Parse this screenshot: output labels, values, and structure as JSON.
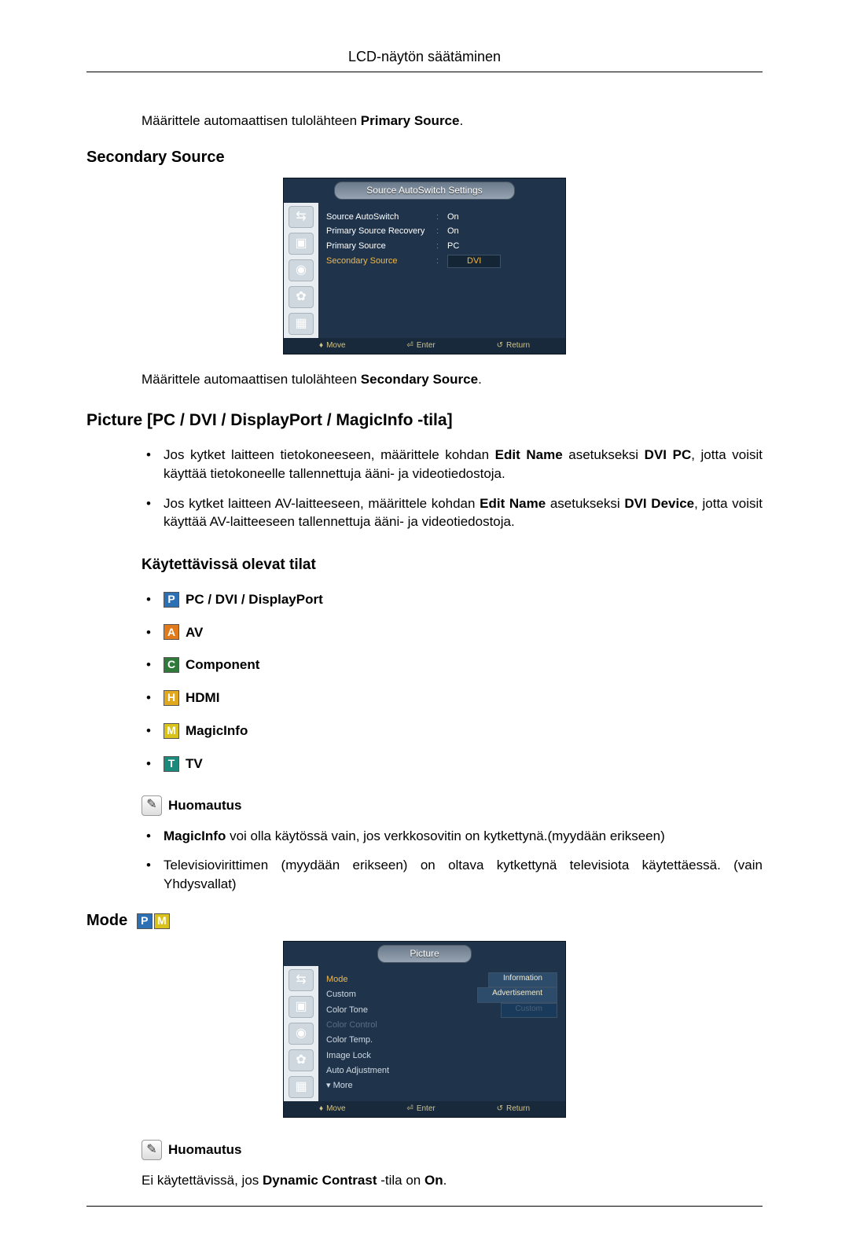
{
  "page_title": "LCD-näytön säätäminen",
  "intro": {
    "prefix": "Määrittele automaattisen tulolähteen ",
    "bold": "Primary Source",
    "suffix": "."
  },
  "secondary_source": {
    "heading": "Secondary Source",
    "body_prefix": "Määrittele automaattisen tulolähteen ",
    "body_bold": "Secondary Source",
    "body_suffix": "."
  },
  "osd_autoswitch": {
    "title": "Source AutoSwitch Settings",
    "rows": [
      {
        "label": "Source AutoSwitch",
        "value": "On"
      },
      {
        "label": "Primary Source Recovery",
        "value": "On"
      },
      {
        "label": "Primary Source",
        "value": "PC"
      },
      {
        "label": "Secondary Source",
        "value": "DVI",
        "highlight": true,
        "boxed": true
      }
    ],
    "footer": {
      "move": "Move",
      "enter": "Enter",
      "return": "Return"
    }
  },
  "picture_heading": "Picture [PC / DVI / DisplayPort / MagicInfo -tila]",
  "picture_bullets": [
    {
      "pre": "Jos kytket laitteen tietokoneeseen, määrittele kohdan ",
      "b1": "Edit Name",
      "mid": " asetukseksi ",
      "b2": "DVI PC",
      "post": ", jotta voisit käyttää tietokoneelle tallennettuja ääni- ja videotiedostoja."
    },
    {
      "pre": "Jos kytket laitteen AV-laitteeseen, määrittele kohdan ",
      "b1": "Edit Name",
      "mid": " asetukseksi ",
      "b2": "DVI Device",
      "post": ", jotta voisit käyttää AV-laitteeseen tallennettuja ääni- ja videotiedostoja."
    }
  ],
  "available_modes_heading": "Käytettävissä olevat tilat",
  "mode_icons": {
    "P": {
      "letter": "P",
      "bg": "#2b6fb5"
    },
    "A": {
      "letter": "A",
      "bg": "#e07a1a"
    },
    "C": {
      "letter": "C",
      "bg": "#2f7a3a"
    },
    "H": {
      "letter": "H",
      "bg": "#e0a81a"
    },
    "M": {
      "letter": "M",
      "bg": "#d9c21a"
    },
    "T": {
      "letter": "T",
      "bg": "#1a8a7a"
    }
  },
  "modes": [
    {
      "icon": "P",
      "label": "PC / DVI / DisplayPort"
    },
    {
      "icon": "A",
      "label": "AV"
    },
    {
      "icon": "C",
      "label": "Component"
    },
    {
      "icon": "H",
      "label": "HDMI"
    },
    {
      "icon": "M",
      "label": "MagicInfo"
    },
    {
      "icon": "T",
      "label": "TV"
    }
  ],
  "note_label": "Huomautus",
  "notes1": [
    {
      "b": "MagicInfo",
      "text": " voi olla käytössä vain, jos verkkosovitin on kytkettynä.(myydään erikseen)"
    },
    {
      "b": "",
      "text": "Televisiovirittimen (myydään erikseen) on oltava kytkettynä televisiota käytettäessä. (vain Yhdysvallat)"
    }
  ],
  "mode_section": {
    "heading": "Mode",
    "icons": [
      "P",
      "M"
    ]
  },
  "osd_picture": {
    "title": "Picture",
    "items": [
      {
        "label": "Mode",
        "sel": true,
        "right": "Information"
      },
      {
        "label": "Custom",
        "right": "Advertisement"
      },
      {
        "label": "Color Tone",
        "right": "Custom"
      },
      {
        "label": "Color Control",
        "dim": true
      },
      {
        "label": "Color Temp."
      },
      {
        "label": "Image Lock"
      },
      {
        "label": "Auto Adjustment"
      },
      {
        "label": "▾ More"
      }
    ],
    "footer": {
      "move": "Move",
      "enter": "Enter",
      "return": "Return"
    }
  },
  "note2_text_pre": "Ei käytettävissä, jos ",
  "note2_bold": "Dynamic Contrast",
  "note2_text_mid": " -tila on ",
  "note2_bold2": "On",
  "note2_text_post": ".",
  "colors": {
    "osd_bg": "#1f344b",
    "highlight": "#f2b84b"
  }
}
